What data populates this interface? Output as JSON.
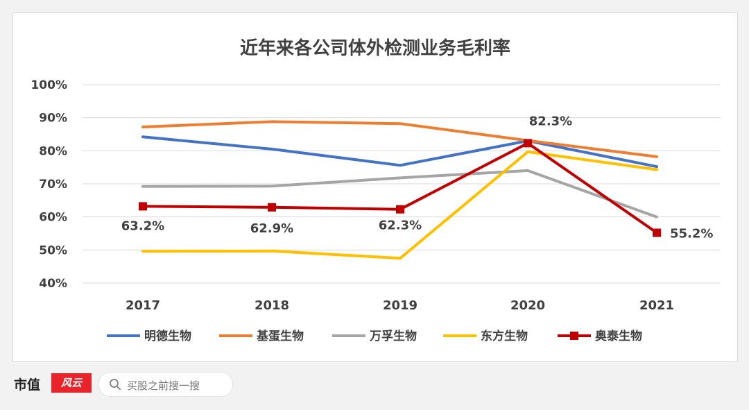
{
  "chart_data": {
    "type": "line",
    "title": "近年来各公司体外检测业务毛利率",
    "categories": [
      "2017",
      "2018",
      "2019",
      "2020",
      "2021"
    ],
    "y_ticks": [
      "100%",
      "90%",
      "80%",
      "70%",
      "60%",
      "50%",
      "40%"
    ],
    "ylim": [
      40,
      100
    ],
    "grid": true,
    "legend_position": "bottom",
    "series": [
      {
        "name": "明德生物",
        "color": "#4472c4",
        "values": [
          84.2,
          80.5,
          75.6,
          83.0,
          75.2
        ],
        "marker": false
      },
      {
        "name": "基蛋生物",
        "color": "#ed7d31",
        "values": [
          87.2,
          88.8,
          88.2,
          83.1,
          78.2
        ],
        "marker": false
      },
      {
        "name": "万孚生物",
        "color": "#a5a5a5",
        "values": [
          69.2,
          69.3,
          71.8,
          74.0,
          60.0
        ],
        "marker": false
      },
      {
        "name": "东方生物",
        "color": "#ffc000",
        "values": [
          49.6,
          49.7,
          47.5,
          79.7,
          74.3
        ],
        "marker": false
      },
      {
        "name": "奥泰生物",
        "color": "#c00000",
        "values": [
          63.2,
          62.9,
          62.3,
          82.3,
          55.2
        ],
        "marker": true,
        "labels": [
          "63.2%",
          "62.9%",
          "62.3%",
          "82.3%",
          "55.2%"
        ]
      }
    ]
  },
  "footer": {
    "brand": "市值",
    "brand_mark": "风云",
    "search_placeholder": "买股之前搜一搜"
  },
  "colors": {
    "grid": "#d9d9d9",
    "text": "#404040",
    "brand": "#e8232a"
  }
}
